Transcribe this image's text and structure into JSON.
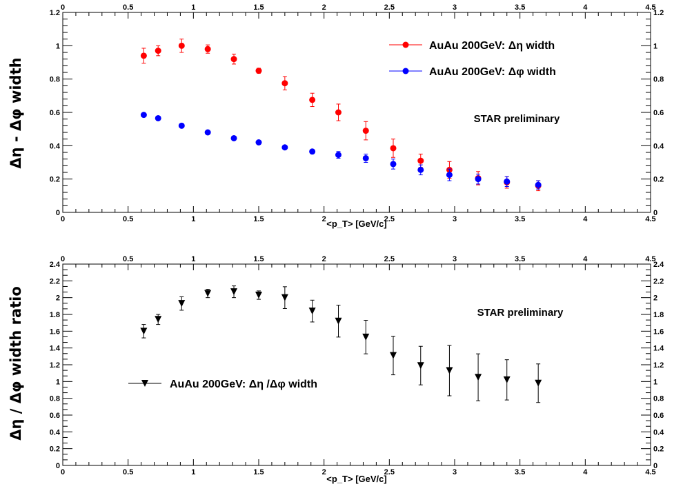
{
  "chart_data": [
    {
      "type": "scatter",
      "xlabel": "<p_T> [GeV/c]",
      "ylabel": "Δη - Δφ width",
      "xlim": [
        0,
        4.5
      ],
      "ylim": [
        0,
        1.2
      ],
      "x_ticks": [
        "0",
        "0.5",
        "1",
        "1.5",
        "2",
        "2.5",
        "3",
        "3.5",
        "4",
        "4.5"
      ],
      "y_ticks": [
        "0",
        "0.2",
        "0.4",
        "0.6",
        "0.8",
        "1",
        "1.2"
      ],
      "annotation": "STAR preliminary",
      "legend_position": "top-right",
      "grid": false,
      "series": [
        {
          "name": "AuAu 200GeV: Δη width",
          "color": "#ff0000",
          "marker": "circle",
          "points": [
            {
              "x": 0.62,
              "y": 0.94,
              "err": 0.045
            },
            {
              "x": 0.73,
              "y": 0.97,
              "err": 0.03
            },
            {
              "x": 0.91,
              "y": 1.0,
              "err": 0.04
            },
            {
              "x": 1.11,
              "y": 0.98,
              "err": 0.025
            },
            {
              "x": 1.31,
              "y": 0.92,
              "err": 0.03
            },
            {
              "x": 1.5,
              "y": 0.85,
              "err": 0.015
            },
            {
              "x": 1.7,
              "y": 0.775,
              "err": 0.04
            },
            {
              "x": 1.91,
              "y": 0.675,
              "err": 0.04
            },
            {
              "x": 2.11,
              "y": 0.6,
              "err": 0.05
            },
            {
              "x": 2.32,
              "y": 0.49,
              "err": 0.055
            },
            {
              "x": 2.53,
              "y": 0.385,
              "err": 0.055
            },
            {
              "x": 2.74,
              "y": 0.31,
              "err": 0.04
            },
            {
              "x": 2.96,
              "y": 0.255,
              "err": 0.05
            },
            {
              "x": 3.18,
              "y": 0.205,
              "err": 0.04
            },
            {
              "x": 3.4,
              "y": 0.18,
              "err": 0.035
            },
            {
              "x": 3.64,
              "y": 0.16,
              "err": 0.03
            }
          ]
        },
        {
          "name": "AuAu 200GeV: Δφ width",
          "color": "#0000ff",
          "marker": "circle",
          "points": [
            {
              "x": 0.62,
              "y": 0.585,
              "err": 0.01
            },
            {
              "x": 0.73,
              "y": 0.565,
              "err": 0.01
            },
            {
              "x": 0.91,
              "y": 0.52,
              "err": 0.01
            },
            {
              "x": 1.11,
              "y": 0.48,
              "err": 0.01
            },
            {
              "x": 1.31,
              "y": 0.445,
              "err": 0.01
            },
            {
              "x": 1.5,
              "y": 0.42,
              "err": 0.01
            },
            {
              "x": 1.7,
              "y": 0.39,
              "err": 0.01
            },
            {
              "x": 1.91,
              "y": 0.365,
              "err": 0.01
            },
            {
              "x": 2.11,
              "y": 0.345,
              "err": 0.02
            },
            {
              "x": 2.32,
              "y": 0.325,
              "err": 0.025
            },
            {
              "x": 2.53,
              "y": 0.29,
              "err": 0.03
            },
            {
              "x": 2.74,
              "y": 0.255,
              "err": 0.03
            },
            {
              "x": 2.96,
              "y": 0.225,
              "err": 0.035
            },
            {
              "x": 3.18,
              "y": 0.2,
              "err": 0.03
            },
            {
              "x": 3.4,
              "y": 0.185,
              "err": 0.03
            },
            {
              "x": 3.64,
              "y": 0.165,
              "err": 0.025
            }
          ]
        }
      ]
    },
    {
      "type": "scatter",
      "xlabel": "<p_T> [GeV/c]",
      "ylabel": "Δη / Δφ width ratio",
      "xlim": [
        0,
        4.5
      ],
      "ylim": [
        0,
        2.4
      ],
      "x_ticks": [
        "0",
        "0.5",
        "1",
        "1.5",
        "2",
        "2.5",
        "3",
        "3.5",
        "4",
        "4.5"
      ],
      "y_ticks": [
        "0",
        "0.2",
        "0.4",
        "0.6",
        "0.8",
        "1",
        "1.2",
        "1.4",
        "1.6",
        "1.8",
        "2",
        "2.2",
        "2.4"
      ],
      "annotation": "STAR preliminary",
      "legend_position": "left",
      "grid": false,
      "series": [
        {
          "name": "AuAu 200GeV: Δη /Δφ width",
          "color": "#000000",
          "marker": "triangle-down",
          "points": [
            {
              "x": 0.62,
              "y": 1.6,
              "err": 0.08
            },
            {
              "x": 0.73,
              "y": 1.74,
              "err": 0.06
            },
            {
              "x": 0.91,
              "y": 1.93,
              "err": 0.08
            },
            {
              "x": 1.11,
              "y": 2.05,
              "err": 0.05
            },
            {
              "x": 1.31,
              "y": 2.07,
              "err": 0.07
            },
            {
              "x": 1.5,
              "y": 2.03,
              "err": 0.05
            },
            {
              "x": 1.7,
              "y": 2.0,
              "err": 0.13
            },
            {
              "x": 1.91,
              "y": 1.84,
              "err": 0.13
            },
            {
              "x": 2.11,
              "y": 1.72,
              "err": 0.19
            },
            {
              "x": 2.32,
              "y": 1.53,
              "err": 0.2
            },
            {
              "x": 2.53,
              "y": 1.31,
              "err": 0.23
            },
            {
              "x": 2.74,
              "y": 1.19,
              "err": 0.23
            },
            {
              "x": 2.96,
              "y": 1.13,
              "err": 0.3
            },
            {
              "x": 3.18,
              "y": 1.05,
              "err": 0.28
            },
            {
              "x": 3.4,
              "y": 1.02,
              "err": 0.24
            },
            {
              "x": 3.64,
              "y": 0.98,
              "err": 0.23
            }
          ]
        }
      ]
    }
  ]
}
